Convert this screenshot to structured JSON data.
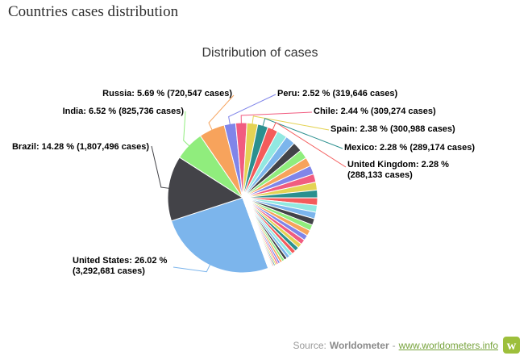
{
  "page": {
    "title": "Countries cases distribution"
  },
  "chart_data": {
    "type": "pie",
    "title": "Distribution of cases",
    "unit": "cases",
    "start_angle_deg": 160,
    "slices": [
      {
        "name": "United States",
        "pct": 26.02,
        "cases": "3,292,681",
        "label": "United States: 26.02 % (3,292,681 cases)",
        "color": "#7cb5ec"
      },
      {
        "name": "Brazil",
        "pct": 14.28,
        "cases": "1,807,496",
        "label": "Brazil: 14.28 % (1,807,496 cases)",
        "color": "#434348"
      },
      {
        "name": "India",
        "pct": 6.52,
        "cases": "825,736",
        "label": "India: 6.52 % (825,736 cases)",
        "color": "#90ed7d"
      },
      {
        "name": "Russia",
        "pct": 5.69,
        "cases": "720,547",
        "label": "Russia: 5.69 % (720,547 cases)",
        "color": "#f7a35c"
      },
      {
        "name": "Peru",
        "pct": 2.52,
        "cases": "319,646",
        "label": "Peru: 2.52 % (319,646 cases)",
        "color": "#8085e9"
      },
      {
        "name": "Chile",
        "pct": 2.44,
        "cases": "309,274",
        "label": "Chile: 2.44 % (309,274 cases)",
        "color": "#f15c80"
      },
      {
        "name": "Spain",
        "pct": 2.38,
        "cases": "300,988",
        "label": "Spain: 2.38 % (300,988 cases)",
        "color": "#e4d354"
      },
      {
        "name": "Mexico",
        "pct": 2.28,
        "cases": "289,174",
        "label": "Mexico: 2.28 % (289,174 cases)",
        "color": "#2b908f"
      },
      {
        "name": "United Kingdom",
        "pct": 2.28,
        "cases": "288,133",
        "label": "United Kingdom: 2.28 % (288,133 cases)",
        "color": "#f45b5b"
      }
    ],
    "unlabeled_slice_values": [
      2.25,
      2.15,
      2.1,
      2.0,
      1.95,
      1.9,
      1.8,
      1.75,
      1.7,
      1.6,
      1.55,
      1.45,
      1.4,
      1.3,
      1.25,
      1.15,
      1.1,
      1.0,
      0.95,
      0.88,
      0.8,
      0.72,
      0.65,
      0.58,
      0.52,
      0.46,
      0.4,
      0.35,
      0.3,
      0.26,
      0.22,
      0.18,
      0.15,
      0.12,
      0.1,
      0.08,
      0.06,
      0.05,
      0.04,
      0.03,
      0.02,
      0.02,
      0.01,
      0.01
    ],
    "palette": [
      "#7cb5ec",
      "#434348",
      "#90ed7d",
      "#f7a35c",
      "#8085e9",
      "#f15c80",
      "#e4d354",
      "#2b908f",
      "#f45b5b",
      "#91e8e1"
    ]
  },
  "footer": {
    "source_prefix": "Source:",
    "source_name": "Worldometer",
    "separator": "-",
    "link": "www.worldometers.info",
    "logo_letter": "w"
  }
}
